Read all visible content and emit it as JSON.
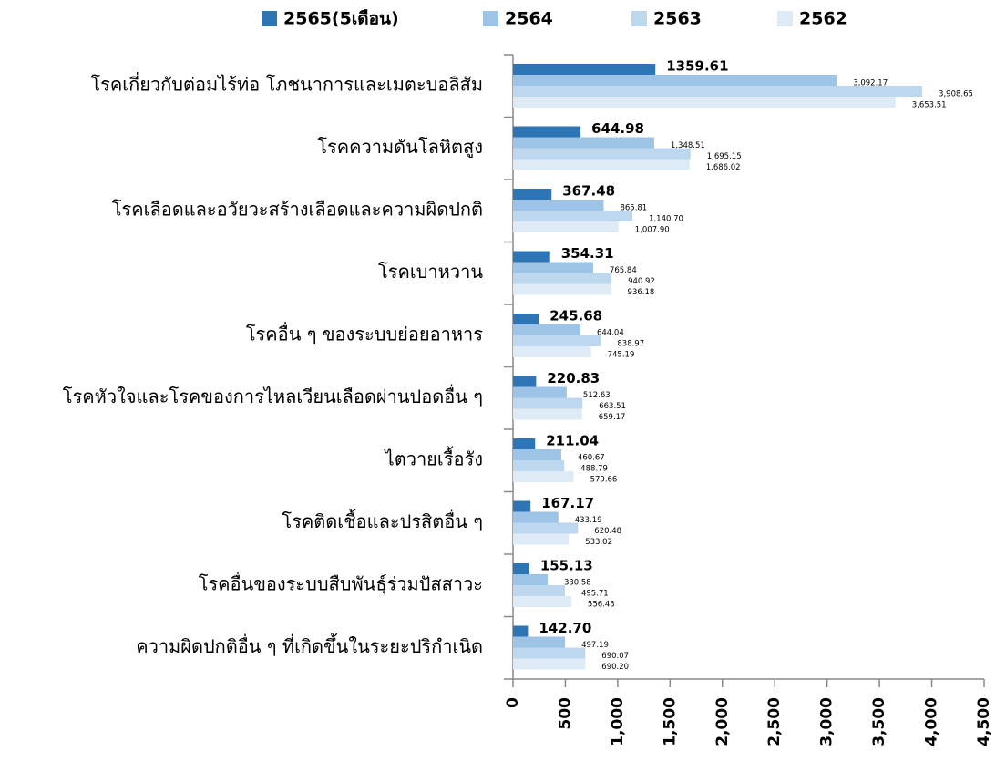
{
  "chart_data": {
    "type": "hbar",
    "categories": [
      "โรคเกี่ยวกับต่อมไร้ท่อ โภชนาการและเมตะบอลิสัม",
      "โรคความดันโลหิตสูง",
      "โรคเลือดและอวัยวะสร้างเลือดและความผิดปกติ",
      "โรคเบาหวาน",
      "โรคอื่น ๆ ของระบบย่อยอาหาร",
      "โรคหัวใจและโรคของการไหลเวียนเลือดผ่านปอดอื่น ๆ",
      "ไตวายเรื้อรัง",
      "โรคติดเชื้อและปรสิตอื่น ๆ",
      "โรคอื่นของระบบสืบพันธุ์ร่วมปัสสาวะ",
      "ความผิดปกติอื่น ๆ ที่เกิดขึ้นในระยะปริกำเนิด"
    ],
    "series": [
      {
        "name": "2565(5เดือน)",
        "color": "#2e75b6",
        "values": [
          1359.61,
          644.98,
          367.48,
          354.31,
          245.68,
          220.83,
          211.04,
          167.17,
          155.13,
          142.7
        ],
        "value_labels": [
          "1359.61",
          "644.98",
          "367.48",
          "354.31",
          "245.68",
          "220.83",
          "211.04",
          "167.17",
          "155.13",
          "142.70"
        ]
      },
      {
        "name": "2564",
        "color": "#9dc3e6",
        "values": [
          3092.17,
          1348.51,
          865.81,
          765.84,
          644.04,
          512.63,
          460.67,
          433.19,
          330.58,
          497.19
        ],
        "value_labels": [
          "3,092.17",
          "1,348.51",
          "865.81",
          "765.84",
          "644.04",
          "512.63",
          "460.67",
          "433.19",
          "330.58",
          "497.19"
        ]
      },
      {
        "name": "2563",
        "color": "#bdd7ee",
        "values": [
          3908.65,
          1695.15,
          1140.7,
          940.92,
          838.97,
          663.51,
          488.79,
          620.48,
          495.71,
          690.07
        ],
        "value_labels": [
          "3,908.65",
          "1,695.15",
          "1,140.70",
          "940.92",
          "838.97",
          "663.51",
          "488.79",
          "620.48",
          "495.71",
          "690.07"
        ]
      },
      {
        "name": "2562",
        "color": "#deebf7",
        "values": [
          3653.51,
          1686.02,
          1007.9,
          936.18,
          745.19,
          659.17,
          579.66,
          533.02,
          556.43,
          690.2
        ],
        "value_labels": [
          "3,653.51",
          "1,686.02",
          "1,007.90",
          "936.18",
          "745.19",
          "659.17",
          "579.66",
          "533.02",
          "556.43",
          "690.20"
        ]
      }
    ],
    "xlim": [
      0,
      4500
    ],
    "xticks": [
      0,
      500,
      {
        "value": 1000,
        "label": "1,000"
      },
      {
        "value": 1500,
        "label": "1,500"
      },
      {
        "value": 2000,
        "label": "2,000"
      },
      {
        "value": 2500,
        "label": "2,500"
      },
      {
        "value": 3000,
        "label": "3,000"
      },
      {
        "value": 3500,
        "label": "3,500"
      },
      {
        "value": 4000,
        "label": "4,000"
      },
      {
        "value": 4500,
        "label": "4,500"
      }
    ],
    "legend": "top"
  }
}
